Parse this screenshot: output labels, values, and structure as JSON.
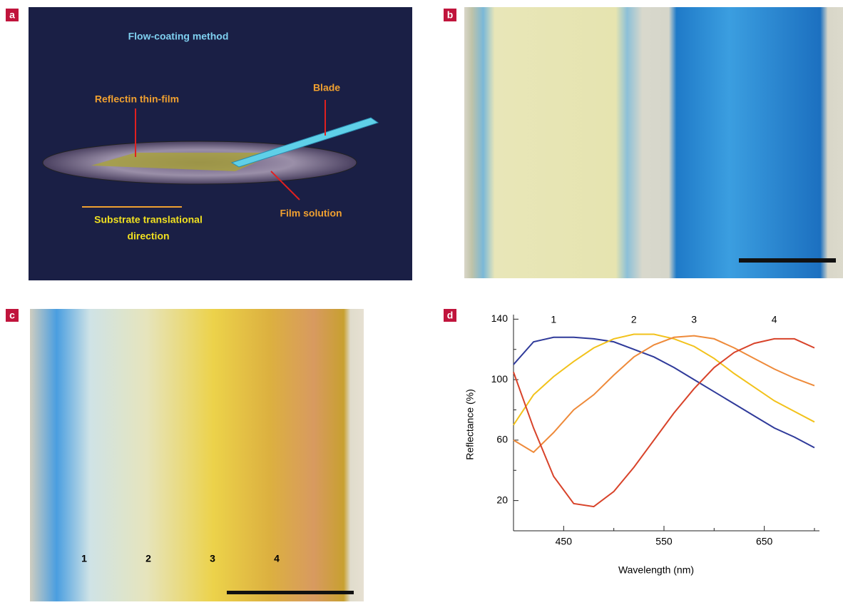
{
  "panel_letters": [
    "a",
    "b",
    "c",
    "d"
  ],
  "panel_a": {
    "title": "Flow-coating method",
    "film_label": "Reflectin thin-film",
    "blade_label": "Blade",
    "solution_label": "Film solution",
    "direction_label": [
      "Substrate translational",
      "direction"
    ]
  },
  "panel_c": {
    "regions": [
      "1",
      "2",
      "3",
      "4"
    ]
  },
  "chart_data": {
    "type": "line",
    "xlabel": "Wavelength (nm)",
    "ylabel": "Reflectance (%)",
    "x": [
      400,
      420,
      440,
      460,
      480,
      500,
      520,
      540,
      560,
      580,
      600,
      620,
      640,
      660,
      680,
      700
    ],
    "series": [
      {
        "name": "1",
        "color": "#2f3a9a",
        "values": [
          110,
          125,
          128,
          128,
          127,
          125,
          120,
          115,
          108,
          100,
          92,
          84,
          76,
          68,
          62,
          55
        ]
      },
      {
        "name": "2",
        "color": "#f2c21b",
        "values": [
          70,
          90,
          102,
          112,
          121,
          127,
          130,
          130,
          127,
          122,
          114,
          104,
          95,
          86,
          79,
          72
        ]
      },
      {
        "name": "3",
        "color": "#ee8a3a",
        "values": [
          60,
          52,
          65,
          80,
          90,
          103,
          115,
          123,
          128,
          129,
          127,
          121,
          114,
          107,
          101,
          96
        ]
      },
      {
        "name": "4",
        "color": "#d8432a",
        "values": [
          105,
          68,
          36,
          18,
          16,
          26,
          42,
          60,
          78,
          94,
          108,
          118,
          124,
          127,
          127,
          121
        ]
      }
    ],
    "xlim": [
      400,
      705
    ],
    "ylim": [
      0,
      143
    ],
    "xticks": [
      450,
      550,
      650
    ],
    "yticks": [
      20,
      60,
      100,
      140
    ],
    "xminorticks": [
      400,
      500,
      600,
      700
    ],
    "yminorticks": [
      0,
      40,
      80,
      120
    ]
  }
}
